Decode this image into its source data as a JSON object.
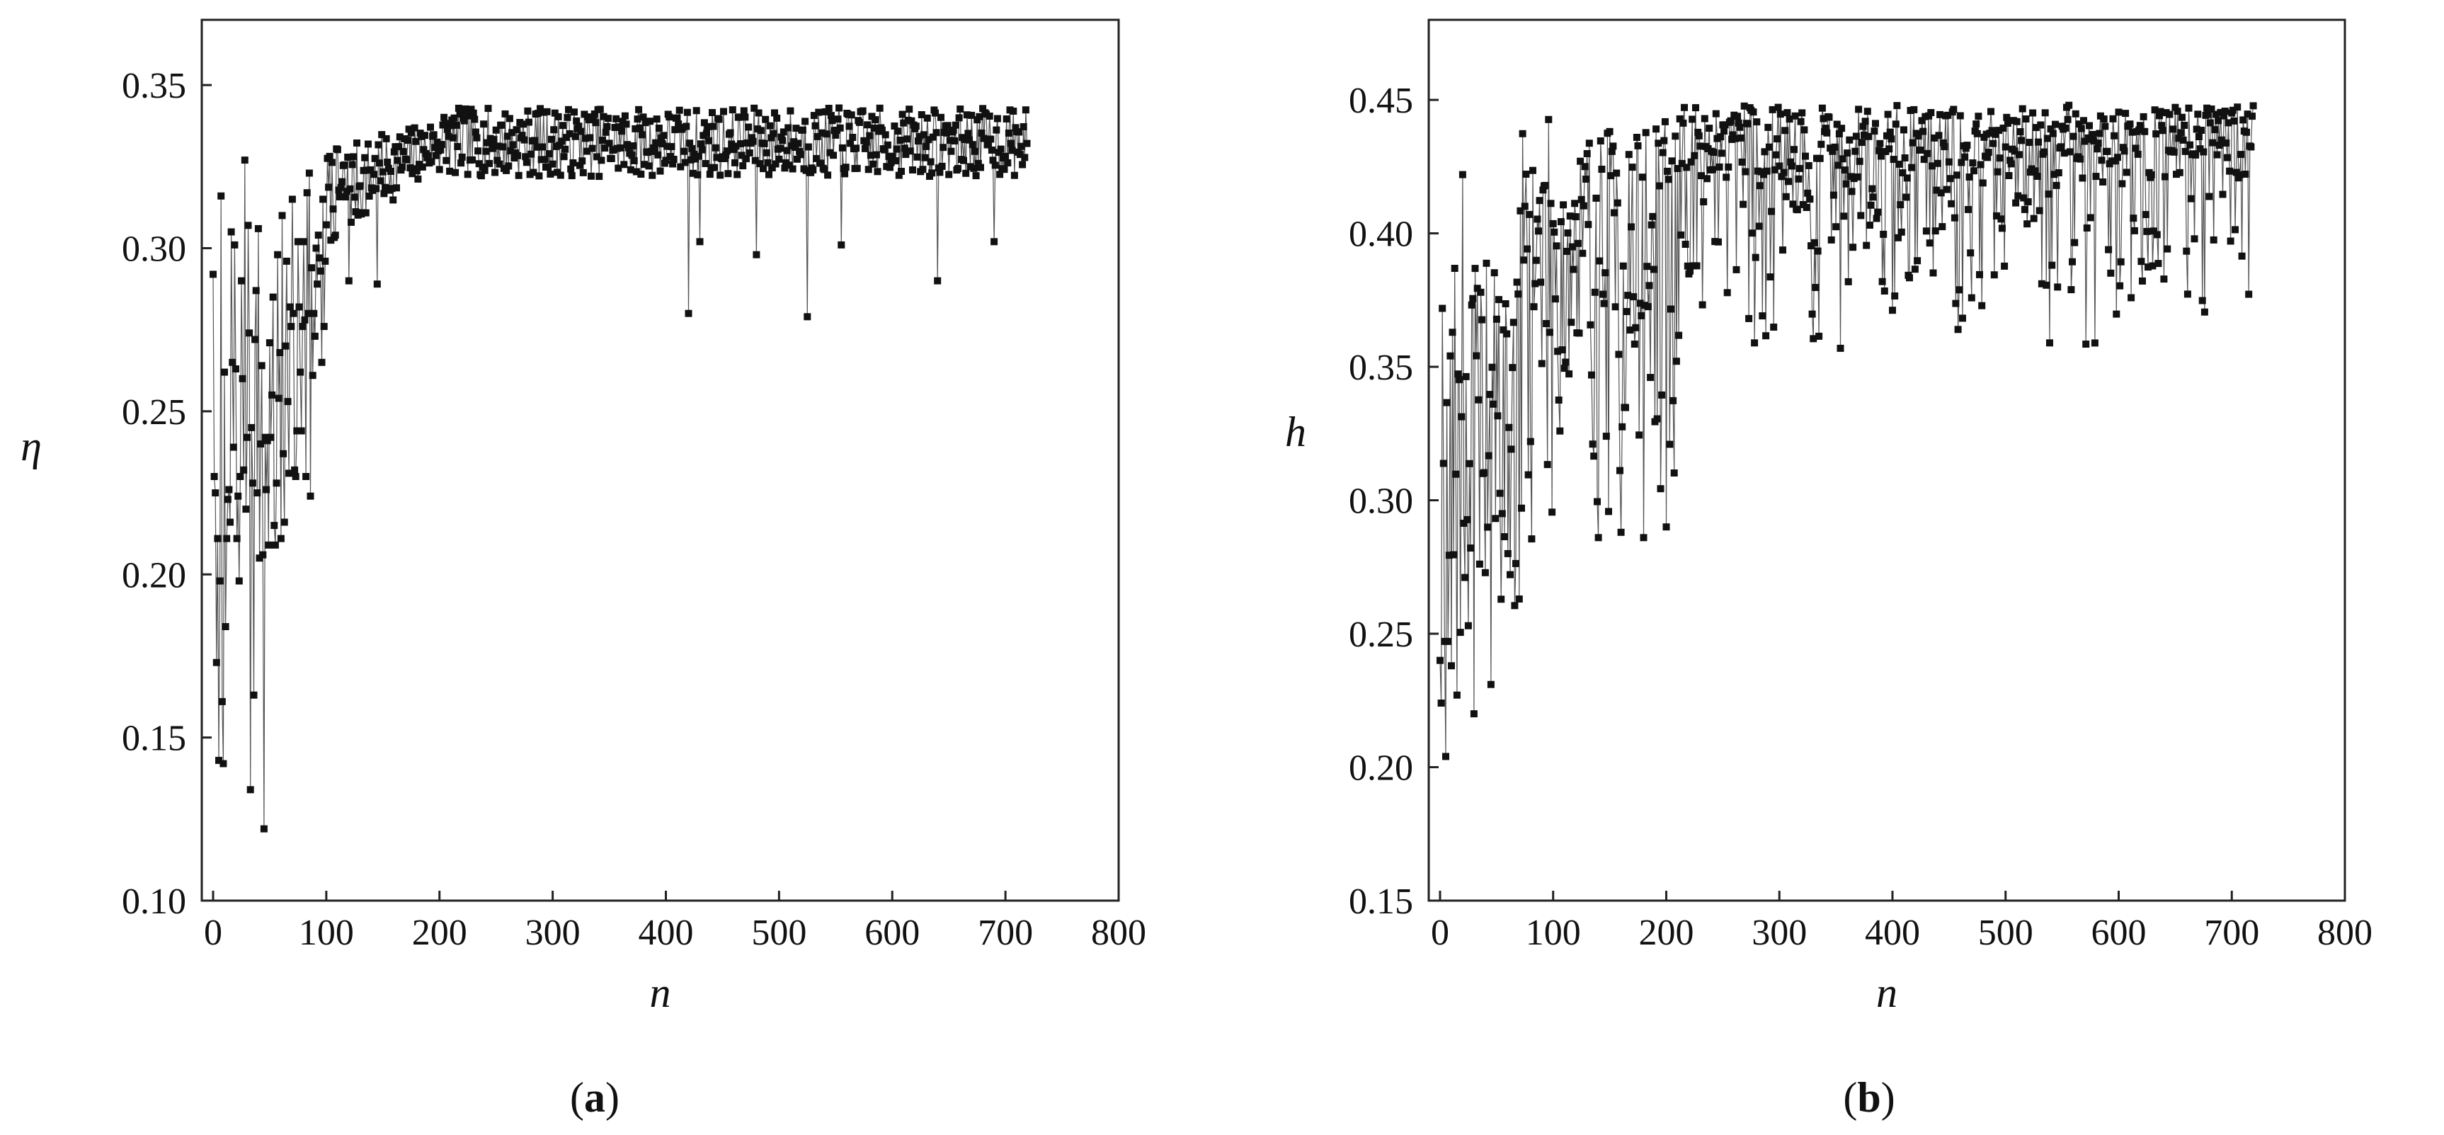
{
  "panels": [
    {
      "caption_open": "(",
      "caption_letter": "a",
      "caption_close": ")",
      "chart_data": {
        "type": "scatter",
        "xlabel": "n",
        "ylabel": "η",
        "xlim": [
          -10,
          800
        ],
        "ylim": [
          0.1,
          0.37
        ],
        "xticks": [
          "0",
          "100",
          "200",
          "300",
          "400",
          "500",
          "600",
          "700",
          "800"
        ],
        "yticks": [
          "0.10",
          "0.15",
          "0.20",
          "0.25",
          "0.30",
          "0.35"
        ],
        "xtick_values": [
          0,
          100,
          200,
          300,
          400,
          500,
          600,
          700,
          800
        ],
        "ytick_values": [
          0.1,
          0.15,
          0.2,
          0.25,
          0.3,
          0.35
        ],
        "connected": true,
        "n_points": 720,
        "series": [
          {
            "x_start": 0,
            "x_step": 1,
            "y": [
              0.292,
              0.23,
              0.225,
              0.173,
              0.211,
              0.143,
              0.198,
              0.316,
              0.161,
              0.142,
              0.262,
              0.184,
              0.211,
              0.223,
              0.226,
              0.216,
              0.305,
              0.265,
              0.239,
              0.301,
              0.263,
              0.211,
              0.224,
              0.198,
              0.23,
              0.29,
              0.26,
              0.232,
              0.327,
              0.22,
              0.242,
              0.307,
              0.274,
              0.134,
              0.245,
              0.228,
              0.163,
              0.272,
              0.287,
              0.225,
              0.306,
              0.205,
              0.24,
              0.264,
              0.206,
              0.122,
              0.242,
              0.226,
              0.241,
              0.209,
              0.271,
              0.242,
              0.255,
              0.285,
              0.215,
              0.209,
              0.228,
              0.298,
              0.254,
              0.268,
              0.211,
              0.31,
              0.237,
              0.216,
              0.27,
              0.296,
              0.253,
              0.231,
              0.282,
              0.276,
              0.315,
              0.28,
              0.232,
              0.23,
              0.244,
              0.302,
              0.282,
              0.262,
              0.244,
              0.276,
              0.302,
              0.278,
              0.23,
              0.317,
              0.28,
              0.323,
              0.224,
              0.294,
              0.261,
              0.28,
              0.273,
              0.3,
              0.289,
              0.304,
              0.297,
              0.293,
              0.265,
              0.315,
              0.276,
              0.296
            ],
            "y_rest_note": ""
          }
        ],
        "outliers": [
          [
            120,
            0.29
          ],
          [
            145,
            0.289
          ],
          [
            420,
            0.28
          ],
          [
            430,
            0.302
          ],
          [
            480,
            0.298
          ],
          [
            525,
            0.279
          ],
          [
            555,
            0.301
          ],
          [
            640,
            0.29
          ],
          [
            690,
            0.302
          ]
        ]
      }
    },
    {
      "caption_open": "(",
      "caption_letter": "b",
      "caption_close": ")",
      "chart_data": {
        "type": "scatter",
        "xlabel": "n",
        "ylabel": "h",
        "xlim": [
          -10,
          800
        ],
        "ylim": [
          0.15,
          0.48
        ],
        "xticks": [
          "0",
          "100",
          "200",
          "300",
          "400",
          "500",
          "600",
          "700",
          "800"
        ],
        "yticks": [
          "0.15",
          "0.20",
          "0.25",
          "0.30",
          "0.35",
          "0.40",
          "0.45"
        ],
        "xtick_values": [
          0,
          100,
          200,
          300,
          400,
          500,
          600,
          700,
          800
        ],
        "ytick_values": [
          0.15,
          0.2,
          0.25,
          0.3,
          0.35,
          0.4,
          0.45
        ],
        "connected": true,
        "n_points": 720,
        "outliers": [
          [
            0,
            0.24
          ],
          [
            5,
            0.204
          ],
          [
            10,
            0.238
          ],
          [
            15,
            0.227
          ],
          [
            20,
            0.422
          ],
          [
            25,
            0.253
          ],
          [
            30,
            0.22
          ],
          [
            38,
            0.31
          ],
          [
            45,
            0.231
          ],
          [
            55,
            0.295
          ],
          [
            60,
            0.28
          ],
          [
            70,
            0.263
          ],
          [
            80,
            0.322
          ],
          [
            140,
            0.286
          ],
          [
            160,
            0.288
          ],
          [
            180,
            0.286
          ],
          [
            200,
            0.29
          ]
        ]
      }
    }
  ]
}
